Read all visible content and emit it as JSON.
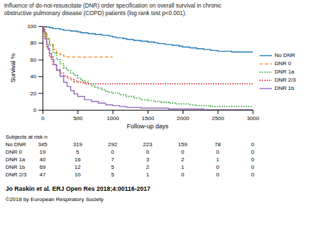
{
  "chart_data": {
    "type": "step",
    "title": [
      "Influence of do-not-resuscitate (DNR) order specification on overall survival in chronic",
      "obstructive pulmonary disease (COPD) patients (log rank test p<0.001)."
    ],
    "xlabel": "Follow-up days",
    "ylabel": "Survival %",
    "xlim": [
      0,
      3000
    ],
    "ylim": [
      0,
      100
    ],
    "xticks": [
      0,
      500,
      1000,
      1500,
      2000,
      2500,
      3000
    ],
    "yticks": [
      0,
      20,
      40,
      60,
      80,
      100
    ],
    "grid": false,
    "legend": "right",
    "series": [
      {
        "name": "No DNR",
        "line_style": "solid",
        "x": [
          0,
          50,
          100,
          150,
          200,
          250,
          300,
          350,
          400,
          450,
          500,
          550,
          600,
          650,
          700,
          750,
          800,
          850,
          900,
          950,
          1000,
          1050,
          1100,
          1150,
          1200,
          1250,
          1300,
          1350,
          1400,
          1450,
          1500,
          1550,
          1600,
          1650,
          1700,
          1750,
          1800,
          1850,
          1900,
          1950,
          2000,
          2100,
          2200,
          2300,
          2400,
          2500,
          2600,
          2700,
          2800,
          3000
        ],
        "values": [
          100,
          99,
          98,
          97,
          97,
          96,
          95,
          95,
          94,
          94,
          93,
          92,
          92,
          91,
          91,
          90,
          90,
          89,
          89,
          88,
          87,
          86,
          86,
          85,
          84,
          84,
          83,
          83,
          82,
          82,
          81,
          81,
          80,
          79,
          79,
          78,
          78,
          77,
          77,
          76,
          75,
          74,
          73,
          72,
          71,
          70,
          70,
          69,
          69,
          69
        ]
      },
      {
        "name": "DNR 0",
        "line_style": "dashed",
        "x": [
          0,
          30,
          60,
          100,
          150,
          200,
          250,
          300,
          350,
          400,
          500,
          600,
          700,
          800,
          900,
          1000
        ],
        "values": [
          100,
          92,
          85,
          78,
          72,
          68,
          66,
          64,
          63,
          63,
          63,
          63,
          63,
          63,
          63,
          63
        ]
      },
      {
        "name": "DNR 1a",
        "line_style": "dotted",
        "x": [
          0,
          30,
          60,
          100,
          150,
          200,
          250,
          300,
          350,
          400,
          450,
          500,
          550,
          600,
          650,
          700,
          750,
          800,
          850,
          900,
          950,
          1000,
          1100,
          1200,
          1300,
          1400,
          1500,
          1600,
          1700,
          1800,
          1900,
          2000,
          2100,
          2200,
          2300,
          2400,
          2500,
          3000
        ],
        "values": [
          100,
          92,
          84,
          77,
          68,
          60,
          55,
          50,
          47,
          44,
          41,
          38,
          35,
          33,
          31,
          29,
          27,
          26,
          24,
          22,
          21,
          20,
          18,
          16,
          14,
          12,
          11,
          10,
          9,
          8,
          7,
          7,
          6,
          5,
          5,
          4,
          4,
          4
        ]
      },
      {
        "name": "DNR 2/3",
        "line_style": "dotted",
        "x": [
          0,
          30,
          60,
          100,
          150,
          200,
          250,
          300,
          350,
          400,
          450,
          500,
          600,
          700,
          800,
          900,
          1000,
          1100,
          1200,
          1300,
          1400,
          1500,
          2000,
          3000
        ],
        "values": [
          100,
          85,
          74,
          63,
          54,
          48,
          44,
          40,
          38,
          36,
          34,
          33,
          31,
          31,
          31,
          31,
          31,
          31,
          31,
          31,
          31,
          31,
          31,
          31
        ]
      },
      {
        "name": "DNR 1b",
        "line_style": "solid",
        "x": [
          0,
          20,
          40,
          60,
          80,
          100,
          130,
          160,
          200,
          250,
          300,
          350,
          400,
          450,
          500,
          600,
          700,
          800,
          900,
          1000,
          1100,
          1200,
          1300,
          1400,
          1500,
          1600,
          1700,
          1800,
          1900,
          2000,
          2100,
          2200,
          2300,
          2400,
          2500,
          3000
        ],
        "values": [
          100,
          93,
          85,
          78,
          72,
          67,
          60,
          54,
          47,
          40,
          33,
          28,
          23,
          19,
          16,
          12,
          10,
          8,
          6,
          5,
          4,
          3,
          3,
          2,
          2,
          2,
          2,
          1,
          1,
          1,
          1,
          1,
          0,
          0,
          0,
          0
        ]
      }
    ],
    "risk_table": {
      "header": "Subjects at risk n",
      "rows": [
        {
          "label": "No DNR",
          "values": [
            345,
            319,
            292,
            223,
            159,
            78,
            0
          ]
        },
        {
          "label": "DNR 0",
          "values": [
            19,
            5,
            0,
            0,
            0,
            0,
            0
          ]
        },
        {
          "label": "DNR 1a",
          "values": [
            40,
            16,
            7,
            3,
            2,
            1,
            0
          ]
        },
        {
          "label": "DNR 1b",
          "values": [
            69,
            12,
            5,
            2,
            1,
            0,
            0
          ]
        },
        {
          "label": "DNR 2/3",
          "values": [
            47,
            10,
            5,
            1,
            0,
            0,
            0
          ]
        }
      ]
    },
    "annotations": [
      "Jo Raskin et al. ERJ Open Res 2018;4:00116-2017",
      "©2018 by European Respiratory Society"
    ]
  }
}
